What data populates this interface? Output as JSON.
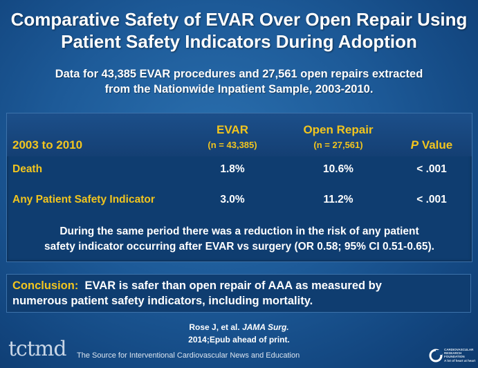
{
  "slide": {
    "title_line1": "Comparative Safety of EVAR Over Open Repair Using",
    "title_line2": "Patient Safety Indicators During Adoption",
    "subtitle_line1": "Data for 43,385 EVAR procedures and 27,561 open repairs extracted",
    "subtitle_line2": "from the Nationwide Inpatient Sample, 2003-2010."
  },
  "table": {
    "period_header": "2003 to 2010",
    "columns": [
      {
        "label": "EVAR",
        "sub": "(n = 43,385)"
      },
      {
        "label": "Open Repair",
        "sub": "(n = 27,561)"
      }
    ],
    "pvalue_header_italic": "P",
    "pvalue_header_rest": " Value",
    "rows": [
      {
        "label": "Death",
        "evar": "1.8%",
        "open": "10.6%",
        "p": "< .001"
      },
      {
        "label": "Any Patient Safety Indicator",
        "evar": "3.0%",
        "open": "11.2%",
        "p": "< .001"
      }
    ],
    "note_line1": "During the same period there was a reduction in the risk of any patient",
    "note_line2": "safety indicator occurring after EVAR vs surgery (OR 0.58; 95% CI 0.51-0.65)."
  },
  "conclusion": {
    "label": "Conclusion:",
    "text_line1": "  EVAR is safer than open repair of AAA as measured by",
    "text_line2": "numerous patient safety indicators, including mortality."
  },
  "citation": {
    "authors": "Rose J, et al. ",
    "journal": "JAMA Surg.",
    "detail": "2014;Epub ahead of print."
  },
  "footer": {
    "logo": "tctmd",
    "tagline": "The Source for Interventional Cardiovascular News and Education",
    "crf_line1": "CARDIOVASCULAR",
    "crf_line2": "RESEARCH",
    "crf_line3": "FOUNDATION",
    "crf_line4": "A lot of heart at heart"
  },
  "colors": {
    "accent": "#f2c51e",
    "background": "#1d5a98",
    "panel": "#0f3d70"
  }
}
